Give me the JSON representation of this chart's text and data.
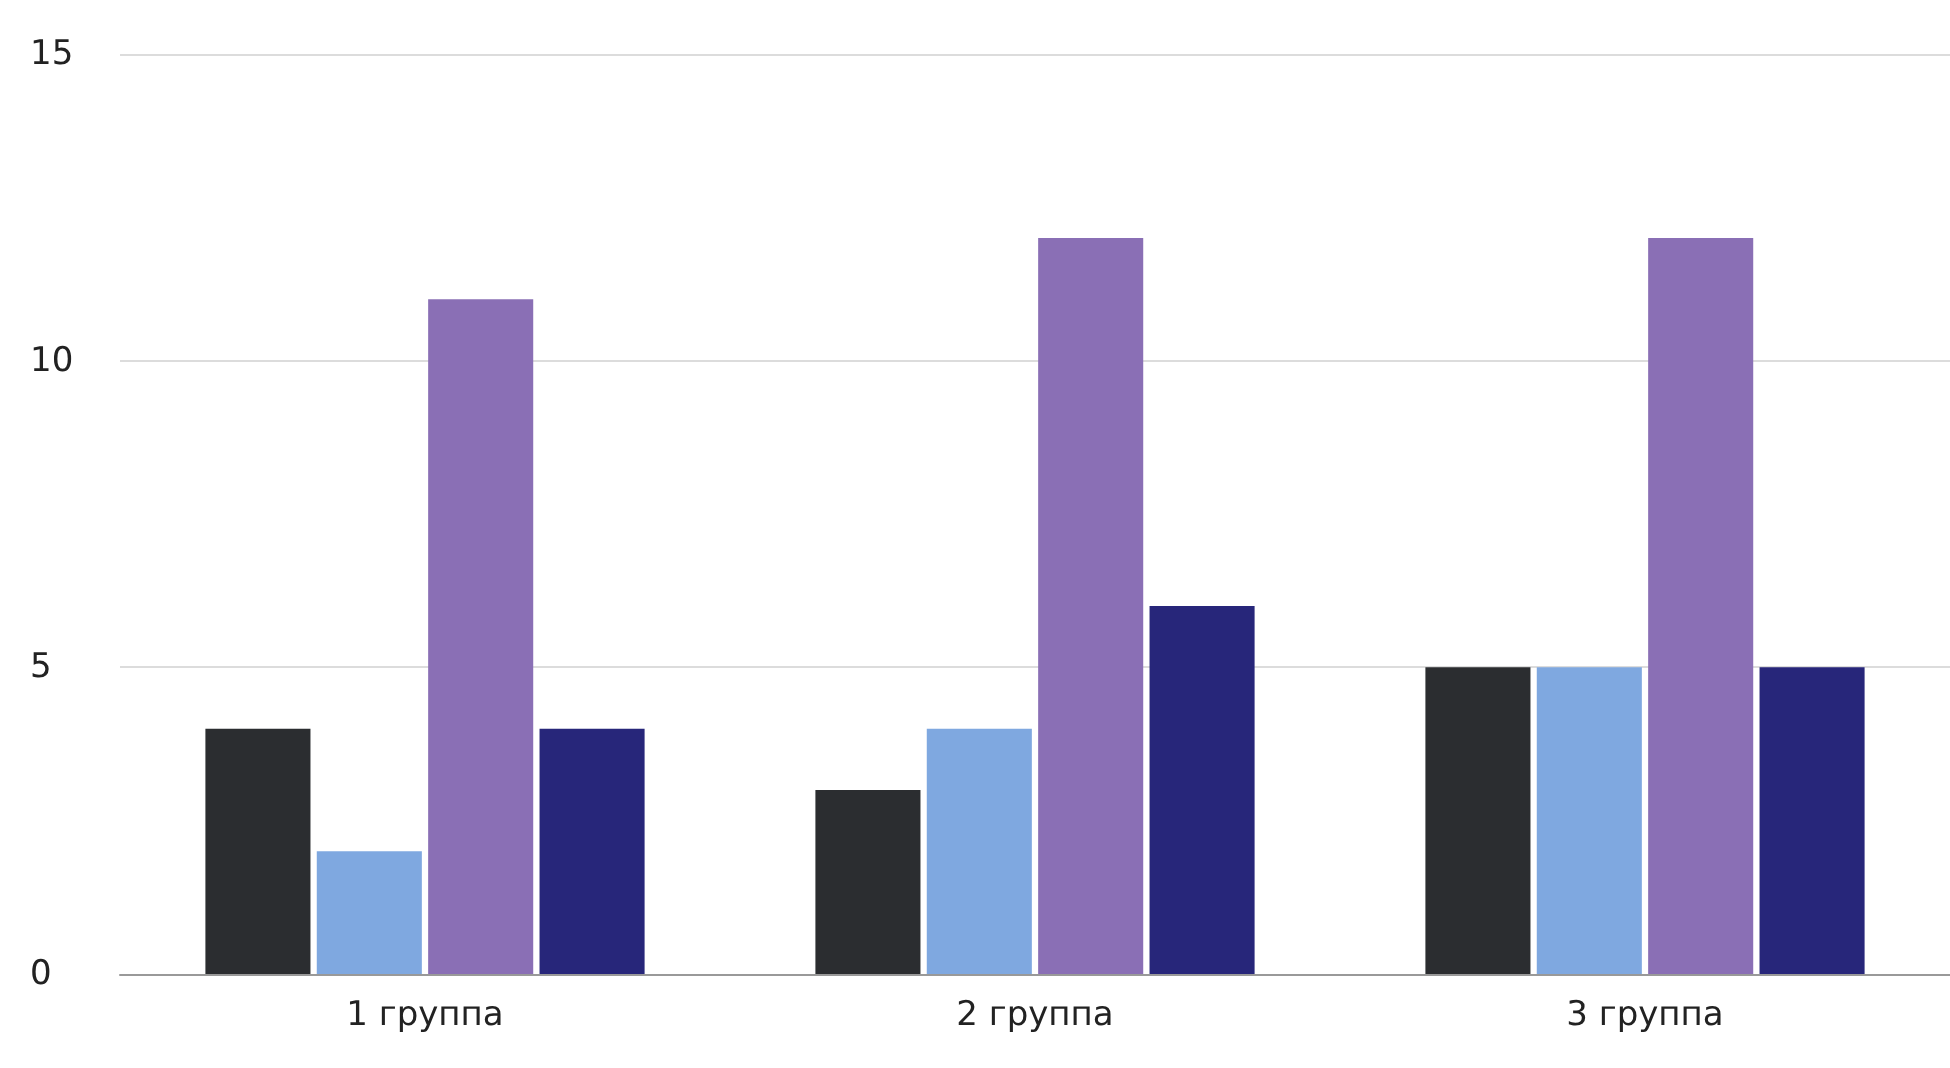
{
  "chart_data": {
    "type": "bar",
    "categories": [
      "1 группа",
      "2 группа",
      "3 группа"
    ],
    "series": [
      {
        "color": "#2b2d30",
        "values": [
          4,
          3,
          5
        ]
      },
      {
        "color": "#7fa8e0",
        "values": [
          2,
          4,
          5
        ]
      },
      {
        "color": "#8a6fb5",
        "values": [
          11,
          12,
          12
        ]
      },
      {
        "color": "#27267a",
        "values": [
          4,
          6,
          5
        ]
      }
    ],
    "ylim": [
      0,
      15
    ],
    "yticks": [
      0,
      5,
      10,
      15
    ],
    "grid": "y"
  }
}
